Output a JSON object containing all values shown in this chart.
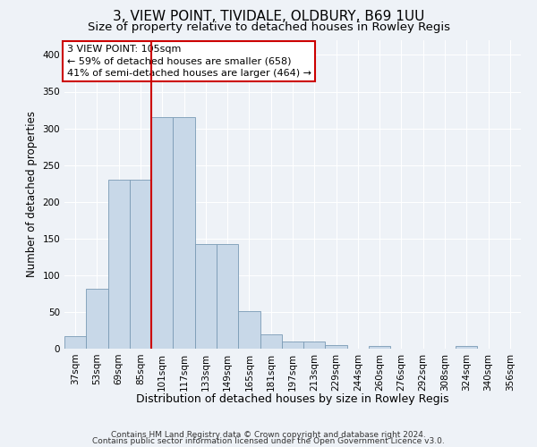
{
  "title1": "3, VIEW POINT, TIVIDALE, OLDBURY, B69 1UU",
  "title2": "Size of property relative to detached houses in Rowley Regis",
  "xlabel": "Distribution of detached houses by size in Rowley Regis",
  "ylabel": "Number of detached properties",
  "categories": [
    "37sqm",
    "53sqm",
    "69sqm",
    "85sqm",
    "101sqm",
    "117sqm",
    "133sqm",
    "149sqm",
    "165sqm",
    "181sqm",
    "197sqm",
    "213sqm",
    "229sqm",
    "244sqm",
    "260sqm",
    "276sqm",
    "292sqm",
    "308sqm",
    "324sqm",
    "340sqm",
    "356sqm"
  ],
  "values": [
    17,
    82,
    230,
    230,
    315,
    315,
    142,
    142,
    51,
    20,
    10,
    10,
    5,
    0,
    4,
    0,
    0,
    0,
    4,
    0,
    0
  ],
  "bar_color": "#c8d8e8",
  "bar_edge_color": "#7a9ab5",
  "vline_x_index": 4,
  "vline_color": "#cc0000",
  "annotation_lines": [
    "3 VIEW POINT: 105sqm",
    "← 59% of detached houses are smaller (658)",
    "41% of semi-detached houses are larger (464) →"
  ],
  "annotation_box_color": "#ffffff",
  "annotation_box_edge_color": "#cc0000",
  "ylim": [
    0,
    420
  ],
  "yticks": [
    0,
    50,
    100,
    150,
    200,
    250,
    300,
    350,
    400
  ],
  "footer1": "Contains HM Land Registry data © Crown copyright and database right 2024.",
  "footer2": "Contains public sector information licensed under the Open Government Licence v3.0.",
  "bg_color": "#eef2f7",
  "plot_bg_color": "#eef2f7",
  "grid_color": "#ffffff",
  "title1_fontsize": 11,
  "title2_fontsize": 9.5,
  "tick_fontsize": 7.5,
  "ylabel_fontsize": 8.5,
  "xlabel_fontsize": 9,
  "annotation_fontsize": 8,
  "footer_fontsize": 6.5
}
